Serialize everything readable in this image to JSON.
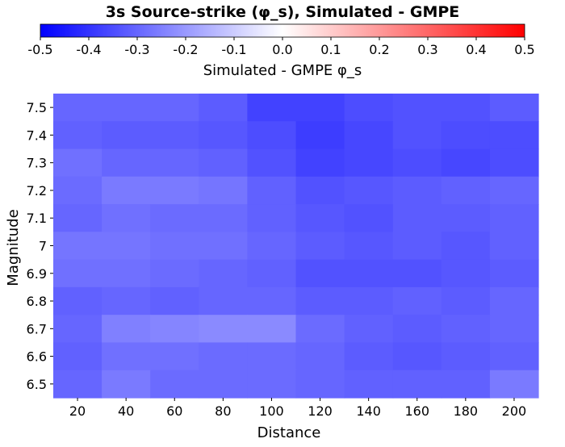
{
  "chart_data": {
    "type": "heatmap",
    "title": "3s Source-strike (φ_s), Simulated - GMPE",
    "xlabel": "Distance",
    "ylabel": "Magnitude",
    "x": [
      20,
      40,
      60,
      80,
      100,
      120,
      140,
      160,
      180,
      200
    ],
    "y": [
      7.5,
      7.4,
      7.3,
      7.2,
      7.1,
      7,
      6.9,
      6.8,
      6.7,
      6.6,
      6.5
    ],
    "x_tick_labels": [
      "20",
      "40",
      "60",
      "80",
      "100",
      "120",
      "140",
      "160",
      "180",
      "200"
    ],
    "y_tick_labels": [
      "7.5",
      "7.4",
      "7.3",
      "7.2",
      "7.1",
      "7",
      "6.9",
      "6.8",
      "6.7",
      "6.6",
      "6.5"
    ],
    "values": [
      [
        -0.3,
        -0.3,
        -0.3,
        -0.32,
        -0.37,
        -0.37,
        -0.35,
        -0.34,
        -0.34,
        -0.32
      ],
      [
        -0.31,
        -0.32,
        -0.32,
        -0.33,
        -0.35,
        -0.38,
        -0.36,
        -0.34,
        -0.35,
        -0.35
      ],
      [
        -0.28,
        -0.3,
        -0.3,
        -0.31,
        -0.34,
        -0.37,
        -0.36,
        -0.35,
        -0.36,
        -0.35
      ],
      [
        -0.29,
        -0.26,
        -0.26,
        -0.27,
        -0.31,
        -0.34,
        -0.33,
        -0.32,
        -0.31,
        -0.3
      ],
      [
        -0.3,
        -0.28,
        -0.29,
        -0.29,
        -0.31,
        -0.33,
        -0.34,
        -0.32,
        -0.32,
        -0.31
      ],
      [
        -0.27,
        -0.27,
        -0.28,
        -0.28,
        -0.3,
        -0.32,
        -0.33,
        -0.32,
        -0.33,
        -0.31
      ],
      [
        -0.28,
        -0.28,
        -0.29,
        -0.3,
        -0.31,
        -0.34,
        -0.34,
        -0.34,
        -0.33,
        -0.32
      ],
      [
        -0.31,
        -0.3,
        -0.31,
        -0.3,
        -0.3,
        -0.32,
        -0.32,
        -0.31,
        -0.32,
        -0.3
      ],
      [
        -0.3,
        -0.25,
        -0.24,
        -0.23,
        -0.23,
        -0.29,
        -0.31,
        -0.32,
        -0.31,
        -0.3
      ],
      [
        -0.31,
        -0.28,
        -0.28,
        -0.29,
        -0.29,
        -0.3,
        -0.32,
        -0.33,
        -0.32,
        -0.31
      ],
      [
        -0.3,
        -0.26,
        -0.29,
        -0.29,
        -0.29,
        -0.3,
        -0.31,
        -0.31,
        -0.31,
        -0.26
      ]
    ],
    "colorbar": {
      "label": "Simulated - GMPE φ_s",
      "range": [
        -0.5,
        0.5
      ],
      "tick_labels": [
        "-0.5",
        "-0.4",
        "-0.3",
        "-0.2",
        "-0.1",
        "0.0",
        "0.1",
        "0.2",
        "0.3",
        "0.4",
        "0.5"
      ],
      "low_color": "#0000ff",
      "mid_color": "#ffffff",
      "high_color": "#ff0000"
    },
    "grid": false,
    "legend": "colorbar-top"
  }
}
